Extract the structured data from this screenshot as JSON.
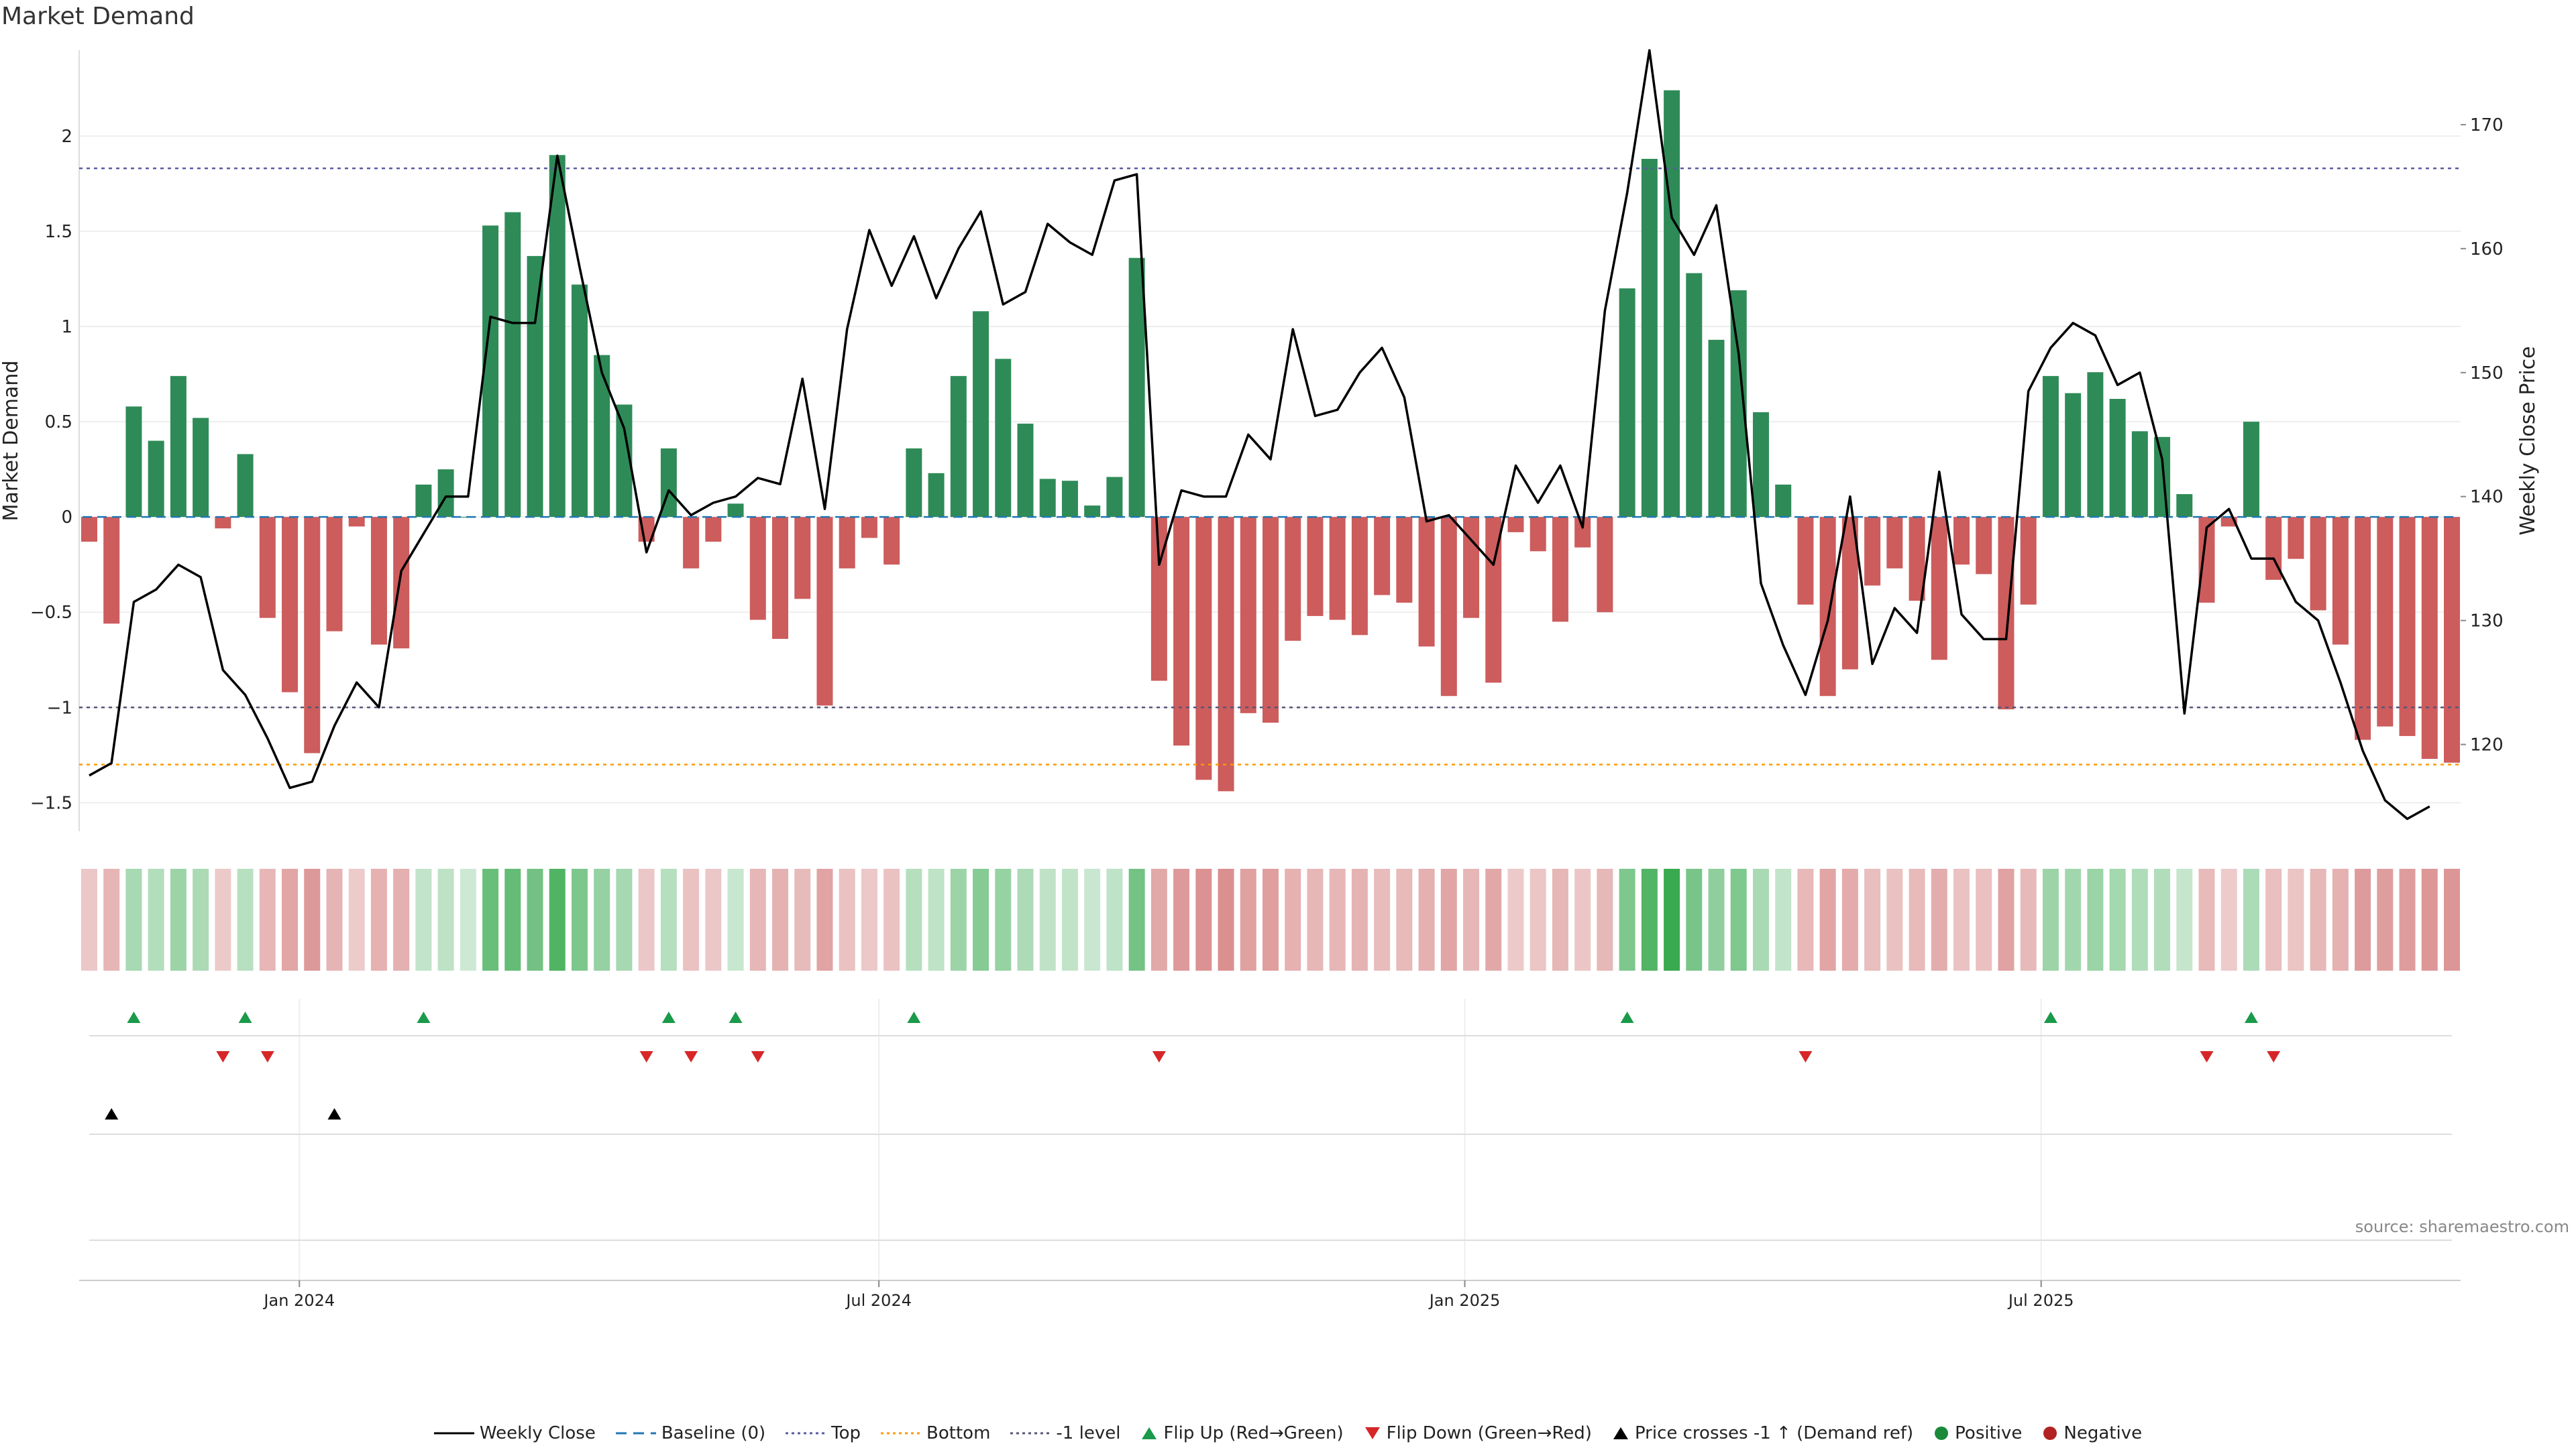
{
  "title": "Market Demand",
  "source": "source: sharemaestro.com",
  "colors": {
    "positive": "#2e8b57",
    "negative": "#cd5c5c",
    "price": "#000000",
    "baseline": "#1f77b4",
    "top": "#5a5aa0",
    "bottom": "#ff9a00",
    "minus1": "#555577",
    "flip_up": "#1a9a4a",
    "flip_down": "#d62728",
    "cross": "#000000",
    "legend_positive": "#1a8a3a",
    "legend_negative": "#b22222"
  },
  "chart_data": {
    "type": "bar",
    "title": "Market Demand",
    "ylabel": "Market Demand",
    "y2label": "Weekly Close Price",
    "ylim": [
      -1.65,
      2.45
    ],
    "y2lim": [
      113,
      176
    ],
    "yticks": [
      -1.5,
      -1,
      -0.5,
      0,
      0.5,
      1,
      1.5,
      2
    ],
    "ytick_labels": [
      "−1.5",
      "−1",
      "−0.5",
      "0",
      "0.5",
      "1",
      "1.5",
      "2"
    ],
    "y2ticks": [
      120,
      130,
      140,
      150,
      160,
      170
    ],
    "y2tick_labels": [
      "120",
      "130",
      "140",
      "150",
      "160",
      "170"
    ],
    "x_start": "2023-10-27",
    "x_ticks": [
      {
        "date": "2024-01-01",
        "label": "Jan 2024"
      },
      {
        "date": "2024-07-01",
        "label": "Jul 2024"
      },
      {
        "date": "2025-01-01",
        "label": "Jan 2025"
      },
      {
        "date": "2025-07-01",
        "label": "Jul 2025"
      }
    ],
    "reference_lines": {
      "top": 1.83,
      "bottom": -1.3,
      "minus1_level": -1,
      "baseline": 0
    },
    "demand": [
      -0.13,
      -0.56,
      0.58,
      0.4,
      0.74,
      0.52,
      -0.06,
      0.33,
      -0.53,
      -0.92,
      -1.24,
      -0.6,
      -0.05,
      -0.67,
      -0.69,
      0.17,
      0.25,
      0,
      1.53,
      1.6,
      1.37,
      1.9,
      1.22,
      0.85,
      0.59,
      -0.13,
      0.36,
      -0.27,
      -0.13,
      0.07,
      -0.54,
      -0.64,
      -0.43,
      -0.99,
      -0.27,
      -0.11,
      -0.25,
      0.36,
      0.23,
      0.74,
      1.08,
      0.83,
      0.49,
      0.2,
      0.19,
      0.06,
      0.21,
      1.36,
      -0.86,
      -1.2,
      -1.38,
      -1.44,
      -1.03,
      -1.08,
      -0.65,
      -0.52,
      -0.54,
      -0.62,
      -0.41,
      -0.45,
      -0.68,
      -0.94,
      -0.53,
      -0.87,
      -0.08,
      -0.18,
      -0.55,
      -0.16,
      -0.5,
      1.2,
      1.88,
      2.24,
      1.28,
      0.93,
      1.19,
      0.55,
      0.17,
      -0.46,
      -0.94,
      -0.8,
      -0.36,
      -0.27,
      -0.44,
      -0.75,
      -0.25,
      -0.3,
      -1.01,
      -0.46,
      0.74,
      0.65,
      0.76,
      0.62,
      0.45,
      0.42,
      0.12,
      -0.45,
      -0.05,
      0.5,
      -0.33,
      -0.22,
      -0.49,
      -0.67,
      -1.17,
      -1.1,
      -1.15,
      -1.27,
      -1.29
    ],
    "price": [
      117.5,
      118.5,
      131.5,
      132.5,
      134.5,
      133.5,
      126,
      124,
      120.5,
      116.5,
      117,
      121.5,
      125,
      123,
      134,
      137,
      140,
      140,
      154.5,
      154,
      154,
      167.5,
      158.5,
      150,
      145.5,
      135.5,
      140.5,
      138.5,
      139.5,
      140,
      141.5,
      141,
      149.5,
      139,
      153.5,
      161.5,
      157,
      161,
      156,
      160,
      163,
      155.5,
      156.5,
      162,
      160.5,
      159.5,
      165.5,
      166,
      134.5,
      140.5,
      140,
      140,
      145,
      143,
      153.5,
      146.5,
      147,
      150,
      152,
      148,
      138,
      138.5,
      136.5,
      134.5,
      142.5,
      139.5,
      142.5,
      137.5,
      155,
      164.5,
      176,
      162.5,
      159.5,
      163.5,
      151.5,
      133,
      128,
      124,
      130,
      140,
      126.5,
      131,
      129,
      142,
      130.5,
      128.5,
      128.5,
      148.5,
      152,
      154,
      153,
      149,
      150,
      143,
      122.5,
      137.5,
      139,
      135,
      135,
      131.5,
      130,
      125,
      119.5,
      115.5,
      114,
      115
    ],
    "legend": [
      "Weekly Close",
      "Baseline (0)",
      "Top",
      "Bottom",
      "-1 level",
      "Flip Up (Red→Green)",
      "Flip Down (Green→Red)",
      "Price crosses -1 ↑ (Demand ref)",
      "Positive",
      "Negative"
    ]
  }
}
